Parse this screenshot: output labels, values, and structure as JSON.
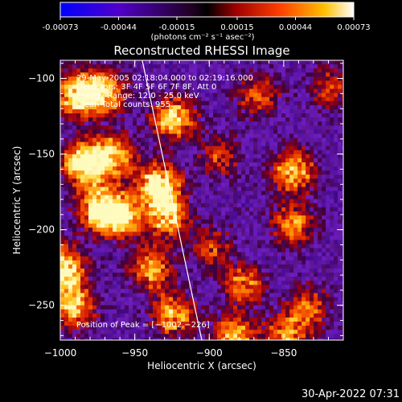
{
  "colorbar": {
    "tick_labels": [
      "-0.00073",
      "-0.00044",
      "-0.00015",
      "0.00015",
      "0.00044",
      "0.00073"
    ],
    "tick_values": [
      -0.00073,
      -0.00044,
      -0.00015,
      0.00015,
      0.00044,
      0.00073
    ],
    "range": [
      -0.00073,
      0.00073
    ],
    "units": "(photons cm⁻² s⁻¹ asec⁻²)",
    "colors": [
      "#0000ff",
      "#6000a0",
      "#000000",
      "#a00000",
      "#ff5000",
      "#ffd000",
      "#ffffff"
    ]
  },
  "chart_data": {
    "type": "heatmap",
    "title": "Reconstructed RHESSI Image",
    "xlabel": "Heliocentric X (arcsec)",
    "ylabel": "Heliocentric Y (arcsec)",
    "xlim": [
      -1000,
      -810
    ],
    "ylim": [
      -273,
      -88
    ],
    "xticks": [
      -1000,
      -950,
      -900,
      -850
    ],
    "xtick_labels": [
      "−1000",
      "−950",
      "−900",
      "−850"
    ],
    "yticks": [
      -100,
      -150,
      -200,
      -250
    ],
    "ytick_labels": [
      "−100",
      "−150",
      "−200",
      "−250"
    ],
    "annotations": [
      "29-May-2005 02:18:04.000 to 02:19:16.000",
      "Detectors: 3F 4F 5F 6F 7F 8F, Att 0",
      "Energy Range: 12.0 - 25.0 keV",
      "Clean    Total counts: 955."
    ],
    "peak_label": "Position of Peak = [−1002,−226]",
    "peak_position": [
      -1002,
      -226
    ],
    "limb_line": [
      [
        -945,
        -88
      ],
      [
        -905,
        -273
      ]
    ],
    "bright_regions": [
      {
        "x": -990,
        "y": -110,
        "level": 0.85
      },
      {
        "x": -972,
        "y": -108,
        "level": 0.75
      },
      {
        "x": -985,
        "y": -155,
        "level": 0.95
      },
      {
        "x": -965,
        "y": -150,
        "level": 0.7
      },
      {
        "x": -975,
        "y": -185,
        "level": 0.9
      },
      {
        "x": -960,
        "y": -190,
        "level": 0.75
      },
      {
        "x": -1000,
        "y": -225,
        "level": 1.0
      },
      {
        "x": -992,
        "y": -250,
        "level": 0.7
      },
      {
        "x": -935,
        "y": -170,
        "level": 0.9
      },
      {
        "x": -930,
        "y": -190,
        "level": 0.7
      },
      {
        "x": -925,
        "y": -125,
        "level": 0.75
      },
      {
        "x": -940,
        "y": -225,
        "level": 0.6
      },
      {
        "x": -925,
        "y": -255,
        "level": 0.65
      },
      {
        "x": -885,
        "y": -270,
        "level": 0.7
      },
      {
        "x": -878,
        "y": -235,
        "level": 0.55
      },
      {
        "x": -850,
        "y": -270,
        "level": 0.6
      },
      {
        "x": -845,
        "y": -160,
        "level": 0.7
      },
      {
        "x": -845,
        "y": -195,
        "level": 0.55
      },
      {
        "x": -835,
        "y": -250,
        "level": 0.5
      },
      {
        "x": -868,
        "y": -110,
        "level": 0.45
      },
      {
        "x": -895,
        "y": -150,
        "level": 0.4
      },
      {
        "x": -900,
        "y": -210,
        "level": 0.4
      },
      {
        "x": -820,
        "y": -105,
        "level": 0.4
      }
    ]
  },
  "footer": {
    "timestamp": "30-Apr-2022 07:31"
  }
}
